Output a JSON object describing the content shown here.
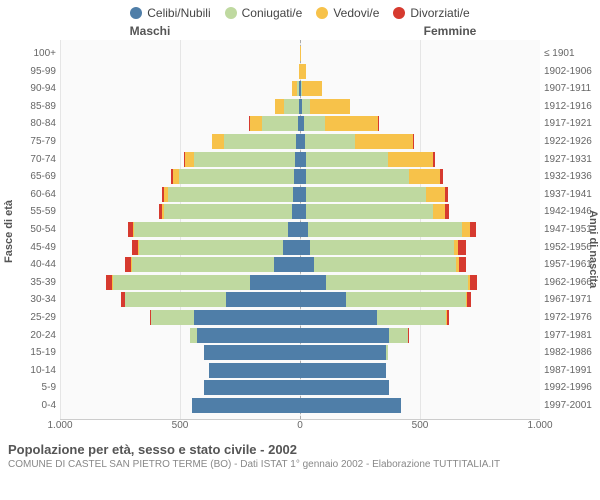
{
  "type": "population-pyramid",
  "title": "Popolazione per età, sesso e stato civile - 2002",
  "subtitle": "COMUNE DI CASTEL SAN PIETRO TERME (BO) - Dati ISTAT 1° gennaio 2002 - Elaborazione TUTTITALIA.IT",
  "legend": [
    {
      "label": "Celibi/Nubili",
      "color": "#4f7ea8"
    },
    {
      "label": "Coniugati/e",
      "color": "#bfd9a0"
    },
    {
      "label": "Vedovi/e",
      "color": "#f7c24a"
    },
    {
      "label": "Divorziati/e",
      "color": "#d63a2f"
    }
  ],
  "headers": {
    "left": "Maschi",
    "right": "Femmine"
  },
  "axes": {
    "left_label": "Fasce di età",
    "right_label": "Anni di nascita",
    "xmax": 1000,
    "xticks": [
      1000,
      500,
      0,
      500,
      1000
    ],
    "xtick_labels": [
      "1.000",
      "500",
      "0",
      "500",
      "1.000"
    ],
    "background": "#fafafa",
    "gridline_color": "#e5e5e5",
    "centerline_color": "#aaaaaa"
  },
  "colors": {
    "single": "#4f7ea8",
    "married": "#bfd9a0",
    "widowed": "#f7c24a",
    "divorced": "#d63a2f"
  },
  "rows": [
    {
      "age": "100+",
      "year": "≤ 1901",
      "m": {
        "single": 0,
        "married": 0,
        "widowed": 0,
        "divorced": 0
      },
      "f": {
        "single": 0,
        "married": 0,
        "widowed": 5,
        "divorced": 0
      }
    },
    {
      "age": "95-99",
      "year": "1902-1906",
      "m": {
        "single": 0,
        "married": 0,
        "widowed": 5,
        "divorced": 0
      },
      "f": {
        "single": 2,
        "married": 0,
        "widowed": 25,
        "divorced": 0
      }
    },
    {
      "age": "90-94",
      "year": "1907-1911",
      "m": {
        "single": 3,
        "married": 10,
        "widowed": 20,
        "divorced": 0
      },
      "f": {
        "single": 5,
        "married": 5,
        "widowed": 80,
        "divorced": 0
      }
    },
    {
      "age": "85-89",
      "year": "1912-1916",
      "m": {
        "single": 5,
        "married": 60,
        "widowed": 40,
        "divorced": 0
      },
      "f": {
        "single": 10,
        "married": 30,
        "widowed": 170,
        "divorced": 0
      }
    },
    {
      "age": "80-84",
      "year": "1917-1921",
      "m": {
        "single": 10,
        "married": 150,
        "widowed": 50,
        "divorced": 2
      },
      "f": {
        "single": 15,
        "married": 90,
        "widowed": 220,
        "divorced": 3
      }
    },
    {
      "age": "75-79",
      "year": "1922-1926",
      "m": {
        "single": 15,
        "married": 300,
        "widowed": 50,
        "divorced": 3
      },
      "f": {
        "single": 20,
        "married": 210,
        "widowed": 240,
        "divorced": 5
      }
    },
    {
      "age": "70-74",
      "year": "1927-1931",
      "m": {
        "single": 20,
        "married": 420,
        "widowed": 40,
        "divorced": 5
      },
      "f": {
        "single": 25,
        "married": 340,
        "widowed": 190,
        "divorced": 8
      }
    },
    {
      "age": "65-69",
      "year": "1932-1936",
      "m": {
        "single": 25,
        "married": 480,
        "widowed": 25,
        "divorced": 8
      },
      "f": {
        "single": 25,
        "married": 430,
        "widowed": 130,
        "divorced": 10
      }
    },
    {
      "age": "60-64",
      "year": "1937-1941",
      "m": {
        "single": 30,
        "married": 520,
        "widowed": 15,
        "divorced": 10
      },
      "f": {
        "single": 25,
        "married": 500,
        "widowed": 80,
        "divorced": 12
      }
    },
    {
      "age": "55-59",
      "year": "1942-1946",
      "m": {
        "single": 35,
        "married": 530,
        "widowed": 10,
        "divorced": 12
      },
      "f": {
        "single": 25,
        "married": 530,
        "widowed": 50,
        "divorced": 15
      }
    },
    {
      "age": "50-54",
      "year": "1947-1951",
      "m": {
        "single": 50,
        "married": 640,
        "widowed": 8,
        "divorced": 20
      },
      "f": {
        "single": 35,
        "married": 640,
        "widowed": 35,
        "divorced": 25
      }
    },
    {
      "age": "45-49",
      "year": "1952-1956",
      "m": {
        "single": 70,
        "married": 600,
        "widowed": 5,
        "divorced": 25
      },
      "f": {
        "single": 40,
        "married": 600,
        "widowed": 20,
        "divorced": 30
      }
    },
    {
      "age": "40-44",
      "year": "1957-1961",
      "m": {
        "single": 110,
        "married": 590,
        "widowed": 3,
        "divorced": 25
      },
      "f": {
        "single": 60,
        "married": 590,
        "widowed": 12,
        "divorced": 30
      }
    },
    {
      "age": "35-39",
      "year": "1962-1966",
      "m": {
        "single": 210,
        "married": 570,
        "widowed": 2,
        "divorced": 25
      },
      "f": {
        "single": 110,
        "married": 590,
        "widowed": 8,
        "divorced": 30
      }
    },
    {
      "age": "30-34",
      "year": "1967-1971",
      "m": {
        "single": 310,
        "married": 420,
        "widowed": 1,
        "divorced": 15
      },
      "f": {
        "single": 190,
        "married": 500,
        "widowed": 4,
        "divorced": 18
      }
    },
    {
      "age": "25-29",
      "year": "1972-1976",
      "m": {
        "single": 440,
        "married": 180,
        "widowed": 0,
        "divorced": 5
      },
      "f": {
        "single": 320,
        "married": 290,
        "widowed": 2,
        "divorced": 8
      }
    },
    {
      "age": "20-24",
      "year": "1977-1981",
      "m": {
        "single": 430,
        "married": 30,
        "widowed": 0,
        "divorced": 0
      },
      "f": {
        "single": 370,
        "married": 80,
        "widowed": 0,
        "divorced": 2
      }
    },
    {
      "age": "15-19",
      "year": "1982-1986",
      "m": {
        "single": 400,
        "married": 0,
        "widowed": 0,
        "divorced": 0
      },
      "f": {
        "single": 360,
        "married": 5,
        "widowed": 0,
        "divorced": 0
      }
    },
    {
      "age": "10-14",
      "year": "1987-1991",
      "m": {
        "single": 380,
        "married": 0,
        "widowed": 0,
        "divorced": 0
      },
      "f": {
        "single": 360,
        "married": 0,
        "widowed": 0,
        "divorced": 0
      }
    },
    {
      "age": "5-9",
      "year": "1992-1996",
      "m": {
        "single": 400,
        "married": 0,
        "widowed": 0,
        "divorced": 0
      },
      "f": {
        "single": 370,
        "married": 0,
        "widowed": 0,
        "divorced": 0
      }
    },
    {
      "age": "0-4",
      "year": "1997-2001",
      "m": {
        "single": 450,
        "married": 0,
        "widowed": 0,
        "divorced": 0
      },
      "f": {
        "single": 420,
        "married": 0,
        "widowed": 0,
        "divorced": 0
      }
    }
  ]
}
